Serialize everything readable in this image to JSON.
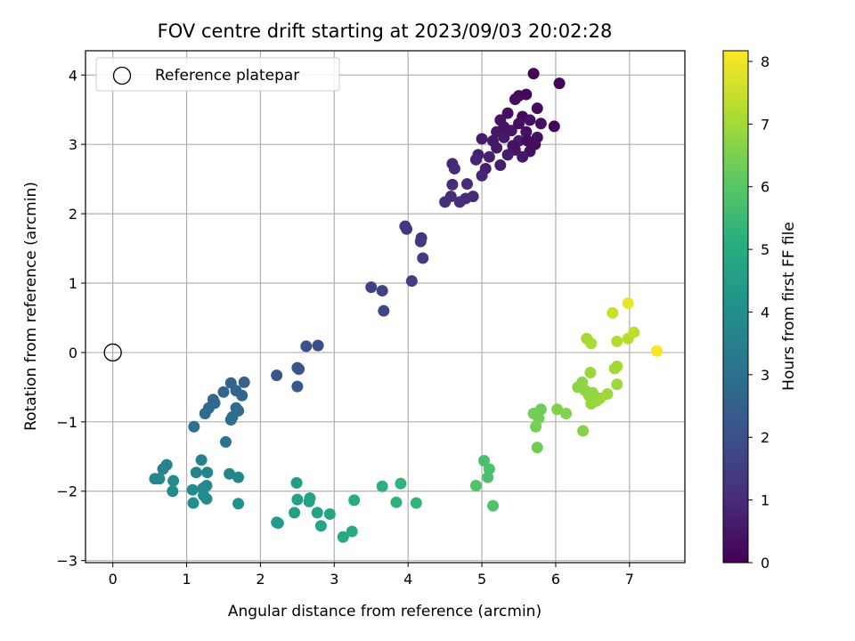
{
  "chart_data": {
    "type": "scatter",
    "title": "FOV centre drift starting at 2023/09/03 20:02:28",
    "xlabel": "Angular distance from reference (arcmin)",
    "ylabel": "Rotation from reference (arcmin)",
    "xlim": [
      -0.37,
      7.75
    ],
    "ylim": [
      -3.03,
      4.35
    ],
    "xticks": [
      "0",
      "1",
      "2",
      "3",
      "4",
      "5",
      "6",
      "7"
    ],
    "xtick_values": [
      0,
      1,
      2,
      3,
      4,
      5,
      6,
      7
    ],
    "yticks": [
      "−3",
      "−2",
      "−1",
      "0",
      "1",
      "2",
      "3",
      "4"
    ],
    "ytick_values": [
      -3,
      -2,
      -1,
      0,
      1,
      2,
      3,
      4
    ],
    "grid": true,
    "legend": {
      "placement": "top-left",
      "entries": [
        "Reference platepar"
      ]
    },
    "reference_point": {
      "x": 0,
      "y": 0
    },
    "colorbar": {
      "label": "Hours from first FF file",
      "range": [
        0,
        8.17
      ],
      "ticks": [
        "0",
        "1",
        "2",
        "3",
        "4",
        "5",
        "6",
        "7",
        "8"
      ],
      "tick_values": [
        0,
        1,
        2,
        3,
        4,
        5,
        6,
        7,
        8
      ],
      "colormap": "viridis"
    },
    "points": [
      {
        "x": 5.7,
        "y": 4.02,
        "t": 0.05
      },
      {
        "x": 6.05,
        "y": 3.88,
        "t": 0.1
      },
      {
        "x": 5.5,
        "y": 3.7,
        "t": 0.2
      },
      {
        "x": 5.6,
        "y": 3.72,
        "t": 0.15
      },
      {
        "x": 5.75,
        "y": 3.52,
        "t": 0.25
      },
      {
        "x": 5.45,
        "y": 3.65,
        "t": 0.3
      },
      {
        "x": 5.35,
        "y": 3.45,
        "t": 0.35
      },
      {
        "x": 5.55,
        "y": 3.4,
        "t": 0.2
      },
      {
        "x": 5.65,
        "y": 3.35,
        "t": 0.4
      },
      {
        "x": 5.8,
        "y": 3.3,
        "t": 0.3
      },
      {
        "x": 5.98,
        "y": 3.26,
        "t": 0.1
      },
      {
        "x": 5.25,
        "y": 3.35,
        "t": 0.45
      },
      {
        "x": 5.4,
        "y": 3.2,
        "t": 0.5
      },
      {
        "x": 5.6,
        "y": 3.18,
        "t": 0.35
      },
      {
        "x": 5.75,
        "y": 3.1,
        "t": 0.4
      },
      {
        "x": 5.5,
        "y": 3.05,
        "t": 0.55
      },
      {
        "x": 5.3,
        "y": 3.1,
        "t": 0.6
      },
      {
        "x": 5.15,
        "y": 3.05,
        "t": 0.5
      },
      {
        "x": 5.0,
        "y": 3.08,
        "t": 0.65
      },
      {
        "x": 5.2,
        "y": 2.95,
        "t": 0.55
      },
      {
        "x": 5.45,
        "y": 2.92,
        "t": 0.45
      },
      {
        "x": 5.65,
        "y": 2.9,
        "t": 0.35
      },
      {
        "x": 5.72,
        "y": 3.0,
        "t": 0.3
      },
      {
        "x": 5.35,
        "y": 2.85,
        "t": 0.6
      },
      {
        "x": 5.1,
        "y": 2.82,
        "t": 0.7
      },
      {
        "x": 4.95,
        "y": 2.85,
        "t": 0.75
      },
      {
        "x": 5.25,
        "y": 2.7,
        "t": 0.65
      },
      {
        "x": 5.55,
        "y": 2.82,
        "t": 0.5
      },
      {
        "x": 4.92,
        "y": 2.78,
        "t": 0.8
      },
      {
        "x": 5.05,
        "y": 2.65,
        "t": 0.7
      },
      {
        "x": 5.0,
        "y": 2.55,
        "t": 0.85
      },
      {
        "x": 5.42,
        "y": 2.98,
        "t": 0.4
      },
      {
        "x": 5.62,
        "y": 3.05,
        "t": 0.25
      },
      {
        "x": 5.3,
        "y": 3.25,
        "t": 0.45
      },
      {
        "x": 5.5,
        "y": 3.3,
        "t": 0.3
      },
      {
        "x": 5.2,
        "y": 3.18,
        "t": 0.5
      },
      {
        "x": 4.6,
        "y": 2.72,
        "t": 0.9
      },
      {
        "x": 4.63,
        "y": 2.65,
        "t": 0.95
      },
      {
        "x": 4.6,
        "y": 2.42,
        "t": 1.0
      },
      {
        "x": 4.8,
        "y": 2.43,
        "t": 1.0
      },
      {
        "x": 4.7,
        "y": 2.17,
        "t": 1.05
      },
      {
        "x": 4.5,
        "y": 2.17,
        "t": 1.1
      },
      {
        "x": 4.58,
        "y": 2.25,
        "t": 1.05
      },
      {
        "x": 4.78,
        "y": 2.22,
        "t": 1.0
      },
      {
        "x": 4.88,
        "y": 2.25,
        "t": 0.95
      },
      {
        "x": 3.96,
        "y": 1.82,
        "t": 1.25
      },
      {
        "x": 3.98,
        "y": 1.78,
        "t": 1.3
      },
      {
        "x": 4.18,
        "y": 1.65,
        "t": 1.3
      },
      {
        "x": 4.17,
        "y": 1.6,
        "t": 1.35
      },
      {
        "x": 4.2,
        "y": 1.36,
        "t": 1.4
      },
      {
        "x": 4.05,
        "y": 1.03,
        "t": 1.5
      },
      {
        "x": 3.5,
        "y": 0.94,
        "t": 1.6
      },
      {
        "x": 3.65,
        "y": 0.89,
        "t": 1.65
      },
      {
        "x": 3.67,
        "y": 0.6,
        "t": 1.7
      },
      {
        "x": 2.62,
        "y": 0.09,
        "t": 1.95
      },
      {
        "x": 2.78,
        "y": 0.1,
        "t": 1.9
      },
      {
        "x": 2.5,
        "y": -0.22,
        "t": 2.1
      },
      {
        "x": 2.52,
        "y": -0.24,
        "t": 2.05
      },
      {
        "x": 2.22,
        "y": -0.33,
        "t": 2.2
      },
      {
        "x": 2.5,
        "y": -0.49,
        "t": 2.2
      },
      {
        "x": 1.78,
        "y": -0.43,
        "t": 2.55
      },
      {
        "x": 1.6,
        "y": -0.44,
        "t": 2.6
      },
      {
        "x": 1.67,
        "y": -0.55,
        "t": 2.65
      },
      {
        "x": 1.5,
        "y": -0.57,
        "t": 2.65
      },
      {
        "x": 1.75,
        "y": -0.62,
        "t": 2.7
      },
      {
        "x": 1.36,
        "y": -0.68,
        "t": 2.75
      },
      {
        "x": 1.38,
        "y": -0.73,
        "t": 2.75
      },
      {
        "x": 1.3,
        "y": -0.8,
        "t": 2.85
      },
      {
        "x": 1.67,
        "y": -0.8,
        "t": 2.8
      },
      {
        "x": 1.7,
        "y": -0.84,
        "t": 2.85
      },
      {
        "x": 1.25,
        "y": -0.88,
        "t": 2.9
      },
      {
        "x": 1.62,
        "y": -0.93,
        "t": 2.9
      },
      {
        "x": 1.6,
        "y": -0.97,
        "t": 2.95
      },
      {
        "x": 1.1,
        "y": -1.07,
        "t": 3.05
      },
      {
        "x": 1.53,
        "y": -1.29,
        "t": 3.1
      },
      {
        "x": 0.73,
        "y": -1.62,
        "t": 3.6
      },
      {
        "x": 1.2,
        "y": -1.55,
        "t": 3.55
      },
      {
        "x": 0.68,
        "y": -1.68,
        "t": 3.65
      },
      {
        "x": 1.13,
        "y": -1.73,
        "t": 3.6
      },
      {
        "x": 1.28,
        "y": -1.73,
        "t": 3.65
      },
      {
        "x": 1.58,
        "y": -1.75,
        "t": 3.7
      },
      {
        "x": 1.7,
        "y": -1.8,
        "t": 3.7
      },
      {
        "x": 0.57,
        "y": -1.82,
        "t": 3.8
      },
      {
        "x": 0.63,
        "y": -1.82,
        "t": 3.8
      },
      {
        "x": 0.82,
        "y": -1.85,
        "t": 3.85
      },
      {
        "x": 1.27,
        "y": -1.92,
        "t": 3.85
      },
      {
        "x": 1.22,
        "y": -1.96,
        "t": 3.9
      },
      {
        "x": 1.08,
        "y": -1.98,
        "t": 3.9
      },
      {
        "x": 0.81,
        "y": -2.0,
        "t": 3.95
      },
      {
        "x": 1.23,
        "y": -2.06,
        "t": 4.0
      },
      {
        "x": 1.27,
        "y": -2.11,
        "t": 4.0
      },
      {
        "x": 1.09,
        "y": -2.17,
        "t": 4.05
      },
      {
        "x": 1.7,
        "y": -2.18,
        "t": 4.05
      },
      {
        "x": 2.22,
        "y": -2.45,
        "t": 4.45
      },
      {
        "x": 2.24,
        "y": -2.46,
        "t": 4.45
      },
      {
        "x": 2.46,
        "y": -2.31,
        "t": 4.5
      },
      {
        "x": 2.49,
        "y": -1.88,
        "t": 4.55
      },
      {
        "x": 2.5,
        "y": -2.12,
        "t": 4.6
      },
      {
        "x": 2.67,
        "y": -2.1,
        "t": 4.65
      },
      {
        "x": 2.66,
        "y": -2.15,
        "t": 4.65
      },
      {
        "x": 2.77,
        "y": -2.31,
        "t": 4.7
      },
      {
        "x": 2.82,
        "y": -2.5,
        "t": 4.75
      },
      {
        "x": 2.94,
        "y": -2.33,
        "t": 4.8
      },
      {
        "x": 3.12,
        "y": -2.66,
        "t": 4.9
      },
      {
        "x": 3.24,
        "y": -2.58,
        "t": 4.95
      },
      {
        "x": 3.27,
        "y": -2.13,
        "t": 5.0
      },
      {
        "x": 3.65,
        "y": -1.93,
        "t": 5.2
      },
      {
        "x": 3.9,
        "y": -1.89,
        "t": 5.3
      },
      {
        "x": 3.84,
        "y": -2.16,
        "t": 5.25
      },
      {
        "x": 4.11,
        "y": -2.17,
        "t": 5.35
      },
      {
        "x": 5.03,
        "y": -1.56,
        "t": 5.75
      },
      {
        "x": 5.1,
        "y": -1.68,
        "t": 5.8
      },
      {
        "x": 5.08,
        "y": -1.8,
        "t": 5.8
      },
      {
        "x": 4.92,
        "y": -1.92,
        "t": 5.85
      },
      {
        "x": 5.15,
        "y": -2.21,
        "t": 5.9
      },
      {
        "x": 5.8,
        "y": -0.82,
        "t": 6.35
      },
      {
        "x": 5.7,
        "y": -0.88,
        "t": 6.4
      },
      {
        "x": 5.77,
        "y": -0.95,
        "t": 6.4
      },
      {
        "x": 5.73,
        "y": -1.07,
        "t": 6.45
      },
      {
        "x": 5.75,
        "y": -1.37,
        "t": 6.35
      },
      {
        "x": 6.02,
        "y": -0.82,
        "t": 6.55
      },
      {
        "x": 6.14,
        "y": -0.88,
        "t": 6.6
      },
      {
        "x": 6.37,
        "y": -1.13,
        "t": 6.65
      },
      {
        "x": 6.3,
        "y": -0.5,
        "t": 6.7
      },
      {
        "x": 6.36,
        "y": -0.43,
        "t": 6.75
      },
      {
        "x": 6.4,
        "y": -0.55,
        "t": 6.75
      },
      {
        "x": 6.45,
        "y": -0.62,
        "t": 6.8
      },
      {
        "x": 6.5,
        "y": -0.58,
        "t": 6.8
      },
      {
        "x": 6.55,
        "y": -0.7,
        "t": 6.85
      },
      {
        "x": 6.48,
        "y": -0.74,
        "t": 6.85
      },
      {
        "x": 6.6,
        "y": -0.66,
        "t": 6.9
      },
      {
        "x": 6.47,
        "y": -0.29,
        "t": 6.9
      },
      {
        "x": 6.7,
        "y": -0.6,
        "t": 6.95
      },
      {
        "x": 6.83,
        "y": -0.46,
        "t": 6.95
      },
      {
        "x": 6.8,
        "y": -0.23,
        "t": 7.0
      },
      {
        "x": 6.83,
        "y": -0.2,
        "t": 7.0
      },
      {
        "x": 6.42,
        "y": 0.2,
        "t": 7.05
      },
      {
        "x": 6.48,
        "y": 0.13,
        "t": 7.1
      },
      {
        "x": 6.83,
        "y": 0.16,
        "t": 7.2
      },
      {
        "x": 6.98,
        "y": 0.2,
        "t": 7.25
      },
      {
        "x": 7.06,
        "y": 0.29,
        "t": 7.35
      },
      {
        "x": 6.77,
        "y": 0.57,
        "t": 7.5
      },
      {
        "x": 6.98,
        "y": 0.71,
        "t": 7.9
      },
      {
        "x": 7.37,
        "y": 0.02,
        "t": 8.1
      }
    ]
  }
}
